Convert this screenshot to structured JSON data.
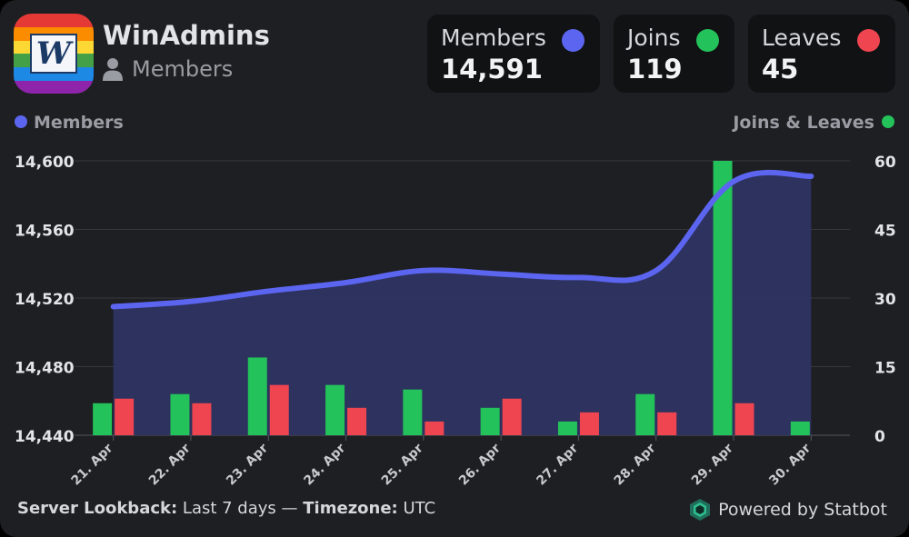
{
  "server": {
    "name": "WinAdmins",
    "subtitle": "Members",
    "logo_letter": "W"
  },
  "stats": [
    {
      "label": "Members",
      "value": "14,591",
      "color": "#5b65ef"
    },
    {
      "label": "Joins",
      "value": "119",
      "color": "#23c25a"
    },
    {
      "label": "Leaves",
      "value": "45",
      "color": "#ef4550"
    }
  ],
  "footer": {
    "lookback_label": "Server Lookback:",
    "lookback_value": "Last 7 days",
    "separator": "—",
    "timezone_label": "Timezone:",
    "timezone_value": "UTC",
    "powered_by": "Powered by Statbot"
  },
  "colors": {
    "members": "#5b65ef",
    "joins": "#23c25a",
    "leaves": "#ef4550",
    "area_fill": "#2e3463"
  },
  "chart_data": {
    "type": "bar",
    "categories": [
      "21. Apr",
      "22. Apr",
      "23. Apr",
      "24. Apr",
      "25. Apr",
      "26. Apr",
      "27. Apr",
      "28. Apr",
      "29. Apr",
      "30. Apr"
    ],
    "legend": {
      "left": "Members",
      "right": "Joins & Leaves"
    },
    "left_axis": {
      "min": 14440,
      "max": 14600,
      "ticks": [
        "14,440",
        "14,480",
        "14,520",
        "14,560",
        "14,600"
      ]
    },
    "right_axis": {
      "min": 0,
      "max": 60,
      "ticks": [
        "0",
        "15",
        "30",
        "45",
        "60"
      ]
    },
    "series": [
      {
        "name": "Members",
        "type": "area-line",
        "axis": "left",
        "values": [
          14515,
          14518,
          14524,
          14529,
          14536,
          14534,
          14532,
          14536,
          14588,
          14591
        ]
      },
      {
        "name": "Joins",
        "type": "bar",
        "axis": "right",
        "values": [
          7,
          9,
          17,
          11,
          10,
          6,
          3,
          9,
          60,
          3
        ]
      },
      {
        "name": "Leaves",
        "type": "bar",
        "axis": "right",
        "values": [
          8,
          7,
          11,
          6,
          3,
          8,
          5,
          5,
          7,
          0
        ]
      }
    ],
    "grid": true
  }
}
